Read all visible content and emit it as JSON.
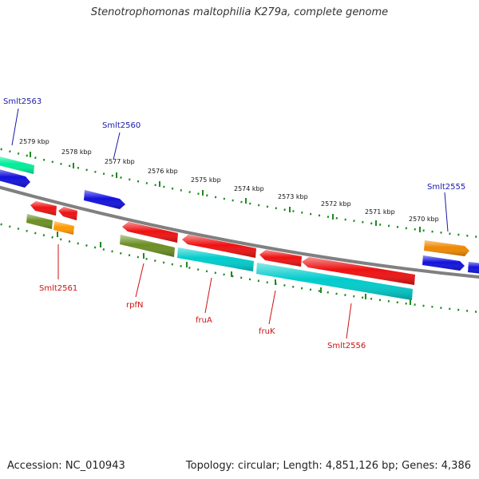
{
  "title": "Stenotrophomonas maltophilia K279a, complete genome",
  "footer": {
    "accession": "Accession: NC_010943",
    "topology": "Topology: circular; Length: 4,851,126 bp; Genes: 4,386"
  },
  "colors": {
    "backbone": "#808080",
    "tick": "#1f8a1f",
    "label_forward": "#1a1aaa",
    "label_reverse": "#cc1111"
  },
  "ticks": [
    "2579 kbp",
    "2578 kbp",
    "2577 kbp",
    "2576 kbp",
    "2575 kbp",
    "2574 kbp",
    "2573 kbp",
    "2572 kbp",
    "2571 kbp",
    "2570 kbp"
  ],
  "forward_genes": [
    {
      "color": "#00ee99"
    },
    {
      "color": "#1111dd"
    },
    {
      "color": "#1111dd"
    },
    {
      "color": "#ee8800"
    },
    {
      "color": "#1111dd"
    },
    {
      "color": "#1111dd"
    }
  ],
  "reverse_genes": [
    {
      "color": "#ee1111"
    },
    {
      "color": "#ee1111"
    },
    {
      "color": "#6b8e23"
    },
    {
      "color": "#ff9900"
    },
    {
      "color": "#ee1111"
    },
    {
      "color": "#ee1111"
    },
    {
      "color": "#6b8e23"
    },
    {
      "color": "#ee1111"
    },
    {
      "color": "#ee1111"
    },
    {
      "color": "#00cccc"
    },
    {
      "color": "#00cccc"
    }
  ],
  "labels_top": [
    "Smlt2563",
    "Smlt2560",
    "Smlt2555"
  ],
  "labels_bottom": [
    "Smlt2561",
    "rpfN",
    "fruA",
    "fruK",
    "Smlt2556"
  ]
}
